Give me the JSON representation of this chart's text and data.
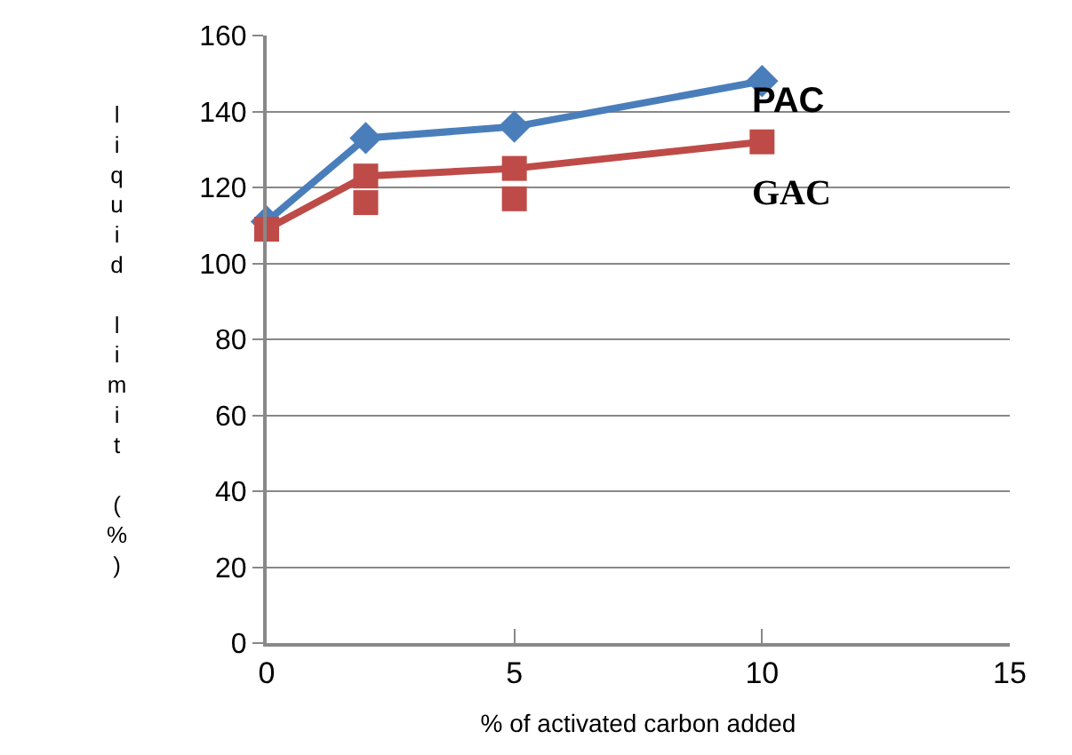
{
  "chart_data": {
    "type": "line",
    "xlabel": "% of activated carbon added",
    "ylabel": "liquid limit (%)",
    "x": [
      0,
      2,
      5,
      10
    ],
    "series": [
      {
        "name": "PAC",
        "color": "#4a7ebb",
        "values": [
          111,
          133,
          136,
          148
        ],
        "marker": "diamond"
      },
      {
        "name": "GAC",
        "color": "#be4b48",
        "values": [
          109,
          123,
          125,
          132
        ],
        "marker": "square"
      },
      {
        "type": "scatter",
        "color": "#be4b48",
        "x": [
          2,
          5
        ],
        "values": [
          116,
          117
        ],
        "marker": "square"
      }
    ],
    "xlim": [
      0,
      15
    ],
    "xticks": [
      0,
      5,
      10,
      15
    ],
    "ylim": [
      0,
      160
    ],
    "yticks": [
      0,
      20,
      40,
      60,
      80,
      100,
      120,
      140,
      160
    ],
    "grid": "y"
  }
}
